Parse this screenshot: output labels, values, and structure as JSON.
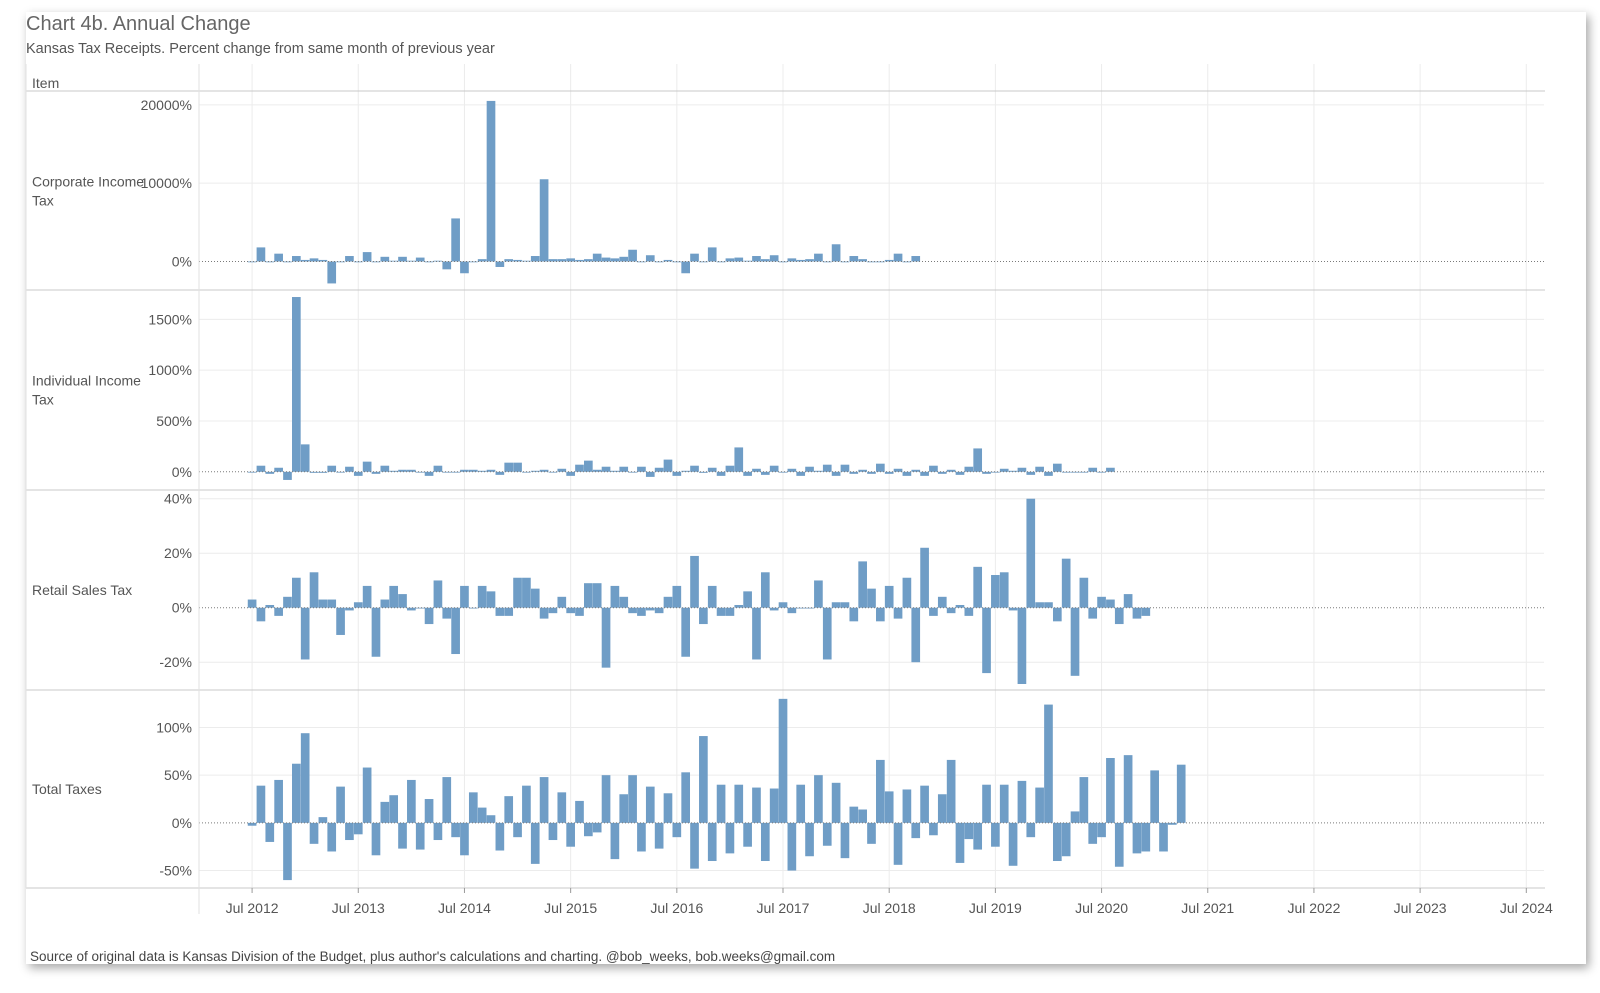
{
  "title": "Chart 4b. Annual Change",
  "subtitle": "Kansas Tax Receipts. Percent change from same month of previous year",
  "row_header": "Item",
  "source": "Source of original data is Kansas Division of the Budget, plus author's calculations and charting. @bob_weeks, bob.weeks@gmail.com",
  "colors": {
    "bar": "#6f9dc6",
    "grid": "#ececec",
    "divider": "#c8c8c8",
    "text": "#555555",
    "title": "#666666"
  },
  "chart_data": {
    "type": "bar",
    "x_unit": "month",
    "x_start": "2012-07",
    "x_range": [
      "2012-01",
      "2024-09"
    ],
    "x_ticks": [
      "Jul 2012",
      "Jul 2013",
      "Jul 2014",
      "Jul 2015",
      "Jul 2016",
      "Jul 2017",
      "Jul 2018",
      "Jul 2019",
      "Jul 2020",
      "Jul 2021",
      "Jul 2022",
      "Jul 2023",
      "Jul 2024"
    ],
    "grid": true,
    "panels": [
      {
        "name": "Corporate Income Tax",
        "label_lines": [
          "Corporate Income",
          "Tax"
        ],
        "ylim": [
          -3000,
          21000
        ],
        "y_ticks": [
          {
            "value": 20000,
            "label": "20000%"
          },
          {
            "value": 10000,
            "label": "10000%"
          },
          {
            "value": 0,
            "label": "0%"
          }
        ],
        "values": [
          0,
          1800,
          0,
          1000,
          0,
          700,
          200,
          400,
          200,
          -2800,
          0,
          700,
          0,
          1200,
          0,
          600,
          100,
          600,
          100,
          500,
          0,
          100,
          -1000,
          5500,
          -1500,
          0,
          300,
          20500,
          -700,
          300,
          200,
          100,
          700,
          10500,
          300,
          300,
          400,
          200,
          300,
          1000,
          500,
          400,
          600,
          1500,
          0,
          800,
          0,
          200,
          0,
          -1500,
          1000,
          0,
          1800,
          0,
          400,
          500,
          100,
          700,
          300,
          800,
          0,
          400,
          200,
          300,
          1000,
          0,
          2200,
          0,
          700,
          300,
          0,
          0,
          200,
          1000,
          0,
          700
        ]
      },
      {
        "name": "Individual Income Tax",
        "label_lines": [
          "Individual Income",
          "Tax"
        ],
        "ylim": [
          -120,
          1730
        ],
        "y_ticks": [
          {
            "value": 1500,
            "label": "1500%"
          },
          {
            "value": 1000,
            "label": "1000%"
          },
          {
            "value": 500,
            "label": "500%"
          },
          {
            "value": 0,
            "label": "0%"
          }
        ],
        "values": [
          0,
          60,
          -20,
          40,
          -80,
          1720,
          270,
          -10,
          -10,
          60,
          0,
          50,
          -40,
          100,
          -20,
          60,
          10,
          20,
          20,
          0,
          -40,
          60,
          0,
          0,
          20,
          20,
          10,
          20,
          -30,
          90,
          90,
          0,
          10,
          20,
          0,
          30,
          -40,
          70,
          110,
          20,
          50,
          10,
          50,
          0,
          50,
          -50,
          40,
          120,
          -40,
          10,
          60,
          -10,
          40,
          -40,
          60,
          240,
          -40,
          30,
          -30,
          60,
          0,
          30,
          -40,
          50,
          10,
          70,
          -40,
          70,
          -20,
          20,
          -20,
          80,
          -20,
          30,
          -40,
          20,
          -40,
          60,
          -20,
          20,
          -30,
          50,
          230,
          -20,
          0,
          30,
          10,
          40,
          -30,
          50,
          -40,
          80,
          0,
          0,
          0,
          40,
          0,
          40
        ]
      },
      {
        "name": "Retail Sales Tax",
        "label_lines": [
          "Retail Sales Tax"
        ],
        "ylim": [
          -28,
          41
        ],
        "y_ticks": [
          {
            "value": 40,
            "label": "40%"
          },
          {
            "value": 20,
            "label": "20%"
          },
          {
            "value": 0,
            "label": "0%"
          },
          {
            "value": -20,
            "label": "-20%"
          }
        ],
        "values": [
          3,
          -5,
          1,
          -3,
          4,
          11,
          -19,
          13,
          3,
          3,
          -10,
          -1,
          2,
          8,
          -18,
          3,
          8,
          5,
          -1,
          0,
          -6,
          10,
          -4,
          -17,
          8,
          0,
          8,
          6,
          -3,
          -3,
          11,
          11,
          7,
          -4,
          -2,
          4,
          -2,
          -3,
          9,
          9,
          -22,
          8,
          4,
          -2,
          -3,
          -1,
          -2,
          4,
          8,
          -18,
          19,
          -6,
          8,
          -3,
          -3,
          1,
          6,
          -19,
          13,
          -1,
          2,
          -2,
          0,
          0,
          10,
          -19,
          2,
          2,
          -5,
          17,
          7,
          -5,
          8,
          -4,
          11,
          -20,
          22,
          -3,
          4,
          -2,
          1,
          -3,
          15,
          -24,
          12,
          13,
          -1,
          -28,
          40,
          2,
          2,
          -5,
          18,
          -25,
          11,
          -4,
          4,
          3,
          -6,
          5,
          -4,
          -3
        ]
      },
      {
        "name": "Total Taxes",
        "label_lines": [
          "Total Taxes"
        ],
        "ylim": [
          -62,
          133
        ],
        "y_ticks": [
          {
            "value": 100,
            "label": "100%"
          },
          {
            "value": 50,
            "label": "50%"
          },
          {
            "value": 0,
            "label": "0%"
          },
          {
            "value": -50,
            "label": "-50%"
          }
        ],
        "values": [
          -3,
          39,
          -20,
          45,
          -60,
          62,
          94,
          -22,
          6,
          -30,
          38,
          -18,
          -12,
          58,
          -34,
          22,
          29,
          -27,
          45,
          -28,
          25,
          -18,
          48,
          -15,
          -34,
          32,
          16,
          8,
          -29,
          28,
          -15,
          39,
          -43,
          48,
          -18,
          32,
          -25,
          23,
          -14,
          -10,
          50,
          -38,
          30,
          50,
          -30,
          38,
          -27,
          31,
          -15,
          53,
          -48,
          91,
          -40,
          40,
          -32,
          40,
          -25,
          37,
          -40,
          36,
          130,
          -50,
          40,
          -35,
          50,
          -24,
          42,
          -37,
          17,
          14,
          -22,
          66,
          33,
          -44,
          35,
          -16,
          39,
          -13,
          30,
          66,
          -42,
          -17,
          -28,
          40,
          -25,
          40,
          -45,
          44,
          -15,
          37,
          124,
          -40,
          -35,
          12,
          48,
          -22,
          -15,
          68,
          -46,
          71,
          -32,
          -30,
          55,
          -30,
          -2,
          61
        ]
      }
    ]
  }
}
